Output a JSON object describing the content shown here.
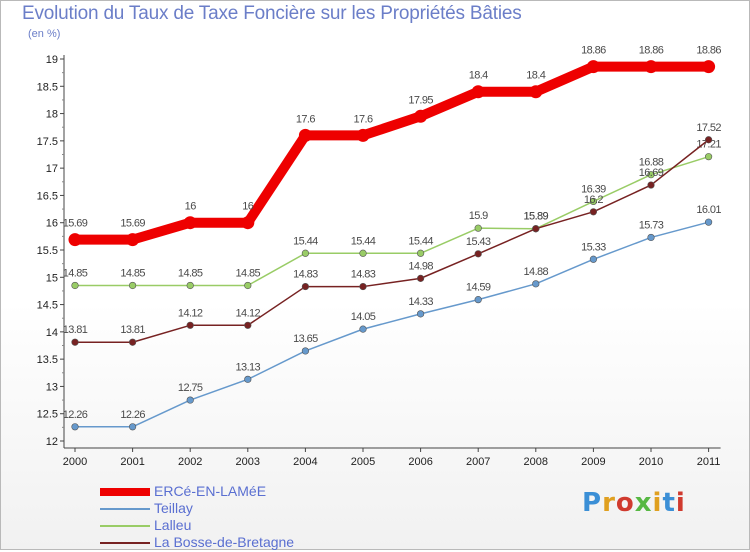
{
  "title": "Evolution du Taux de Taxe Foncière sur les Propriétés Bâties",
  "unit_label": "(en %)",
  "logo_text": "Proxiti",
  "chart_data": {
    "type": "line",
    "title": "Evolution du Taux de Taxe Foncière sur les Propriétés Bâties",
    "ylabel": "(en %)",
    "xlabel": "",
    "categories": [
      "2000",
      "2001",
      "2002",
      "2003",
      "2004",
      "2005",
      "2006",
      "2007",
      "2008",
      "2009",
      "2010",
      "2011"
    ],
    "ylim": [
      12,
      19
    ],
    "yticks": [
      "12",
      "12.5",
      "13",
      "13.5",
      "14",
      "14.5",
      "15",
      "15.5",
      "16",
      "16.5",
      "17",
      "17.5",
      "18",
      "18.5",
      "19"
    ],
    "grid": false,
    "legend_position": "bottom-left",
    "series": [
      {
        "name": "ERCé-EN-LAMéE",
        "color": "#ee0000",
        "values": [
          15.69,
          15.69,
          16,
          16,
          17.6,
          17.6,
          17.95,
          18.4,
          18.4,
          18.86,
          18.86,
          18.86
        ],
        "labels": [
          "15.69",
          "15.69",
          "16",
          "16",
          "17.6",
          "17.6",
          "17.95",
          "18.4",
          "18.4",
          "18.86",
          "18.86",
          "18.86"
        ]
      },
      {
        "name": "Teillay",
        "color": "#6699cc",
        "values": [
          12.26,
          12.26,
          12.75,
          13.13,
          13.65,
          14.05,
          14.33,
          14.59,
          14.88,
          15.33,
          15.73,
          16.01
        ],
        "labels": [
          "12.26",
          "12.26",
          "12.75",
          "13.13",
          "13.65",
          "14.05",
          "14.33",
          "14.59",
          "14.88",
          "15.33",
          "15.73",
          "16.01"
        ]
      },
      {
        "name": "Lalleu",
        "color": "#99cc66",
        "values": [
          14.85,
          14.85,
          14.85,
          14.85,
          15.44,
          15.44,
          15.44,
          15.9,
          15.89,
          16.39,
          16.88,
          17.21
        ],
        "labels": [
          "14.85",
          "14.85",
          "14.85",
          "14.85",
          "15.44",
          "15.44",
          "15.44",
          "15.9",
          "15.89",
          "16.39",
          "16.88",
          "17.21"
        ]
      },
      {
        "name": "La Bosse-de-Bretagne",
        "color": "#772222",
        "values": [
          13.81,
          13.81,
          14.12,
          14.12,
          14.83,
          14.83,
          14.98,
          15.43,
          15.89,
          16.2,
          16.69,
          17.52
        ],
        "labels": [
          "13.81",
          "13.81",
          "14.12",
          "14.12",
          "14.83",
          "14.83",
          "14.98",
          "15.43",
          "15.89",
          "16.2",
          "16.69",
          "17.52"
        ]
      }
    ]
  }
}
